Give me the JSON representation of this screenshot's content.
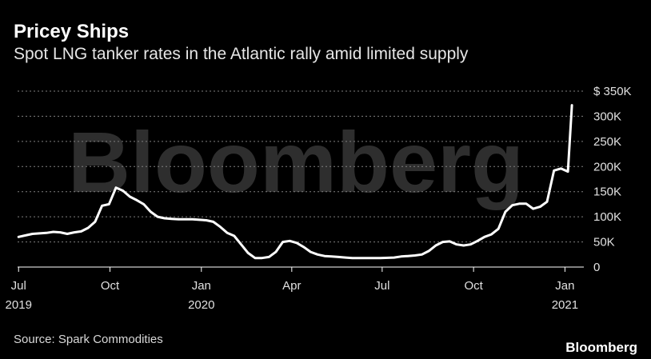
{
  "header": {
    "title": "Pricey Ships",
    "subtitle": "Spot LNG tanker rates in the Atlantic rally amid limited supply"
  },
  "footer": {
    "source": "Source: Spark Commodities",
    "brand": "Bloomberg"
  },
  "watermark": "Bloomberg",
  "colors": {
    "background": "#000000",
    "line": "#ffffff",
    "grid": "#808080",
    "watermark": "#555555"
  },
  "chart_data": {
    "type": "line",
    "title": "Pricey Ships",
    "subtitle": "Spot LNG tanker rates in the Atlantic rally amid limited supply",
    "xlabel": "",
    "ylabel": "",
    "ylim": [
      0,
      350000
    ],
    "yticks": [
      {
        "value": 350000,
        "label": "$ 350K"
      },
      {
        "value": 300000,
        "label": "300K"
      },
      {
        "value": 250000,
        "label": "250K"
      },
      {
        "value": 200000,
        "label": "200K"
      },
      {
        "value": 150000,
        "label": "150K"
      },
      {
        "value": 100000,
        "label": "100K"
      },
      {
        "value": 50000,
        "label": "50K"
      },
      {
        "value": 0,
        "label": "0"
      }
    ],
    "xlim": [
      "2019-06-30",
      "2021-01-20"
    ],
    "xticks": [
      {
        "date": "2019-07-01",
        "label": "Jul",
        "sublabel": "2019"
      },
      {
        "date": "2019-10-01",
        "label": "Oct",
        "sublabel": ""
      },
      {
        "date": "2020-01-01",
        "label": "Jan",
        "sublabel": "2020"
      },
      {
        "date": "2020-04-01",
        "label": "Apr",
        "sublabel": ""
      },
      {
        "date": "2020-07-01",
        "label": "Jul",
        "sublabel": ""
      },
      {
        "date": "2020-10-01",
        "label": "Oct",
        "sublabel": ""
      },
      {
        "date": "2021-01-01",
        "label": "Jan",
        "sublabel": "2021"
      }
    ],
    "grid": true,
    "legend": "none",
    "series": [
      {
        "x": [
          "2019-07-01",
          "2019-07-08",
          "2019-07-15",
          "2019-07-22",
          "2019-07-29",
          "2019-08-05",
          "2019-08-12",
          "2019-08-19",
          "2019-08-26",
          "2019-09-02",
          "2019-09-09",
          "2019-09-16",
          "2019-09-23",
          "2019-09-30",
          "2019-10-07",
          "2019-10-14",
          "2019-10-21",
          "2019-10-28",
          "2019-11-04",
          "2019-11-11",
          "2019-11-18",
          "2019-11-25",
          "2019-12-02",
          "2019-12-09",
          "2019-12-16",
          "2019-12-23",
          "2019-12-30",
          "2020-01-06",
          "2020-01-13",
          "2020-01-20",
          "2020-01-27",
          "2020-02-03",
          "2020-02-10",
          "2020-02-17",
          "2020-02-24",
          "2020-03-02",
          "2020-03-09",
          "2020-03-16",
          "2020-03-23",
          "2020-03-30",
          "2020-04-06",
          "2020-04-13",
          "2020-04-20",
          "2020-04-27",
          "2020-05-04",
          "2020-05-11",
          "2020-05-18",
          "2020-05-25",
          "2020-06-01",
          "2020-06-15",
          "2020-06-29",
          "2020-07-13",
          "2020-07-20",
          "2020-07-27",
          "2020-08-03",
          "2020-08-10",
          "2020-08-17",
          "2020-08-24",
          "2020-08-31",
          "2020-09-07",
          "2020-09-14",
          "2020-09-21",
          "2020-09-28",
          "2020-10-05",
          "2020-10-12",
          "2020-10-19",
          "2020-10-26",
          "2020-11-02",
          "2020-11-09",
          "2020-11-16",
          "2020-11-23",
          "2020-11-30",
          "2020-12-07",
          "2020-12-14",
          "2020-12-21",
          "2020-12-28",
          "2021-01-04",
          "2021-01-08"
        ],
        "y": [
          60000,
          63000,
          66000,
          67000,
          68000,
          70000,
          69000,
          66000,
          69000,
          71000,
          78000,
          90000,
          122000,
          125000,
          158000,
          152000,
          140000,
          133000,
          125000,
          110000,
          100000,
          97000,
          96000,
          95000,
          95000,
          95000,
          94000,
          93000,
          90000,
          80000,
          68000,
          62000,
          45000,
          28000,
          18000,
          18000,
          20000,
          30000,
          50000,
          52000,
          48000,
          40000,
          30000,
          25000,
          22000,
          21000,
          20000,
          19000,
          18000,
          18000,
          18000,
          19000,
          21000,
          22000,
          23000,
          25000,
          32000,
          43000,
          50000,
          51000,
          45000,
          43000,
          45000,
          52000,
          60000,
          65000,
          76000,
          110000,
          123000,
          126000,
          126000,
          116000,
          120000,
          130000,
          192000,
          196000,
          190000,
          322000
        ]
      }
    ]
  }
}
